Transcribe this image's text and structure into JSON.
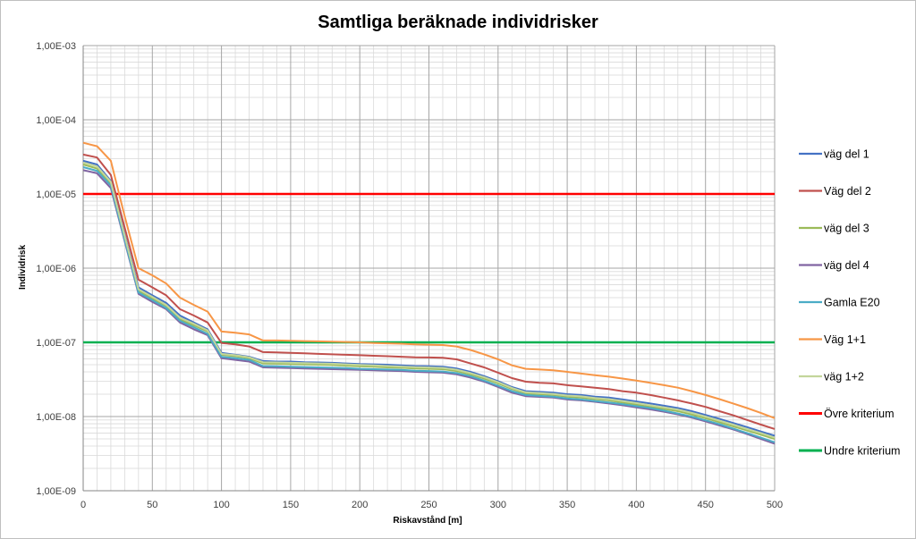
{
  "chart_data": {
    "type": "line",
    "title": "Samtliga beräknade individrisker",
    "xlabel": "Riskavstånd [m]",
    "ylabel": "Individrisk",
    "xlim": [
      0,
      500
    ],
    "ylim": [
      1e-09,
      0.001
    ],
    "yscale": "log",
    "x_ticks": [
      0,
      50,
      100,
      150,
      200,
      250,
      300,
      350,
      400,
      450,
      500
    ],
    "y_ticks": [
      1e-09,
      1e-08,
      1e-07,
      1e-06,
      1e-05,
      0.0001,
      0.001
    ],
    "y_tick_labels": [
      "1,00E-09",
      "1,00E-08",
      "1,00E-07",
      "1,00E-06",
      "1,00E-05",
      "1,00E-04",
      "1,00E-03"
    ],
    "grid": true,
    "legend_position": "right",
    "x": [
      0,
      10,
      20,
      30,
      40,
      50,
      60,
      70,
      80,
      90,
      100,
      110,
      120,
      130,
      140,
      150,
      160,
      170,
      180,
      190,
      200,
      210,
      220,
      230,
      240,
      250,
      260,
      270,
      280,
      290,
      300,
      310,
      320,
      330,
      340,
      350,
      360,
      370,
      380,
      390,
      400,
      410,
      420,
      430,
      440,
      450,
      460,
      470,
      480,
      490,
      500
    ],
    "series": [
      {
        "name": "väg del 1",
        "color": "#4472c4",
        "values": [
          2.8e-05,
          2.5e-05,
          1.5e-05,
          2.8e-06,
          5.5e-07,
          4.3e-07,
          3.4e-07,
          2.3e-07,
          1.85e-07,
          1.5e-07,
          7.2e-08,
          6.8e-08,
          6.4e-08,
          5.6e-08,
          5.5e-08,
          5.5e-08,
          5.4e-08,
          5.35e-08,
          5.3e-08,
          5.2e-08,
          5.1e-08,
          5.05e-08,
          5e-08,
          4.9e-08,
          4.8e-08,
          4.75e-08,
          4.7e-08,
          4.45e-08,
          4e-08,
          3.5e-08,
          3e-08,
          2.5e-08,
          2.2e-08,
          2.15e-08,
          2.1e-08,
          2e-08,
          1.95e-08,
          1.85e-08,
          1.8e-08,
          1.7e-08,
          1.6e-08,
          1.5e-08,
          1.4e-08,
          1.3e-08,
          1.18e-08,
          1.05e-08,
          9.3e-09,
          8.2e-09,
          7.2e-09,
          6.3e-09,
          5.5e-09
        ]
      },
      {
        "name": "Väg del 2",
        "color": "#c0504d",
        "values": [
          3.4e-05,
          3.1e-05,
          1.8e-05,
          3.5e-06,
          7e-07,
          5.5e-07,
          4.3e-07,
          2.8e-07,
          2.3e-07,
          1.85e-07,
          9.8e-08,
          9.4e-08,
          8.8e-08,
          7.4e-08,
          7.3e-08,
          7.2e-08,
          7.1e-08,
          7e-08,
          6.9e-08,
          6.8e-08,
          6.7e-08,
          6.6e-08,
          6.5e-08,
          6.4e-08,
          6.3e-08,
          6.25e-08,
          6.2e-08,
          5.9e-08,
          5.2e-08,
          4.6e-08,
          3.9e-08,
          3.3e-08,
          2.95e-08,
          2.85e-08,
          2.8e-08,
          2.65e-08,
          2.55e-08,
          2.45e-08,
          2.35e-08,
          2.2e-08,
          2.1e-08,
          1.95e-08,
          1.8e-08,
          1.65e-08,
          1.5e-08,
          1.35e-08,
          1.18e-08,
          1.04e-08,
          9e-09,
          7.8e-09,
          6.8e-09
        ]
      },
      {
        "name": "väg del 3",
        "color": "#9bbb59",
        "values": [
          2.5e-05,
          2.2e-05,
          1.4e-05,
          2.6e-06,
          5e-07,
          3.9e-07,
          3.1e-07,
          2.05e-07,
          1.7e-07,
          1.4e-07,
          6.8e-08,
          6.5e-08,
          6.1e-08,
          5.2e-08,
          5.15e-08,
          5.1e-08,
          5.05e-08,
          5e-08,
          4.95e-08,
          4.85e-08,
          4.75e-08,
          4.7e-08,
          4.6e-08,
          4.55e-08,
          4.45e-08,
          4.4e-08,
          4.35e-08,
          4.1e-08,
          3.7e-08,
          3.25e-08,
          2.8e-08,
          2.35e-08,
          2.05e-08,
          2e-08,
          1.95e-08,
          1.85e-08,
          1.8e-08,
          1.72e-08,
          1.65e-08,
          1.55e-08,
          1.45e-08,
          1.35e-08,
          1.27e-08,
          1.18e-08,
          1.07e-08,
          9.5e-09,
          8.4e-09,
          7.4e-09,
          6.5e-09,
          5.7e-09,
          5e-09
        ]
      },
      {
        "name": "väg del 4",
        "color": "#8064a2",
        "values": [
          2.1e-05,
          1.9e-05,
          1.2e-05,
          2.3e-06,
          4.5e-07,
          3.5e-07,
          2.8e-07,
          1.85e-07,
          1.5e-07,
          1.25e-07,
          6.1e-08,
          5.8e-08,
          5.5e-08,
          4.6e-08,
          4.55e-08,
          4.5e-08,
          4.45e-08,
          4.4e-08,
          4.35e-08,
          4.3e-08,
          4.25e-08,
          4.2e-08,
          4.15e-08,
          4.1e-08,
          4e-08,
          3.95e-08,
          3.9e-08,
          3.7e-08,
          3.35e-08,
          2.95e-08,
          2.5e-08,
          2.1e-08,
          1.88e-08,
          1.84e-08,
          1.8e-08,
          1.7e-08,
          1.65e-08,
          1.58e-08,
          1.5e-08,
          1.42e-08,
          1.33e-08,
          1.25e-08,
          1.16e-08,
          1.07e-08,
          9.7e-09,
          8.6e-09,
          7.6e-09,
          6.7e-09,
          5.8e-09,
          5e-09,
          4.3e-09
        ]
      },
      {
        "name": "Gamla E20",
        "color": "#4bacc6",
        "values": [
          2.3e-05,
          2.05e-05,
          1.3e-05,
          2.4e-06,
          4.7e-07,
          3.7e-07,
          2.9e-07,
          1.95e-07,
          1.6e-07,
          1.3e-07,
          6.4e-08,
          6.1e-08,
          5.8e-08,
          4.8e-08,
          4.75e-08,
          4.7e-08,
          4.65e-08,
          4.6e-08,
          4.55e-08,
          4.5e-08,
          4.4e-08,
          4.35e-08,
          4.3e-08,
          4.25e-08,
          4.15e-08,
          4.1e-08,
          4.05e-08,
          3.85e-08,
          3.5e-08,
          3.05e-08,
          2.6e-08,
          2.2e-08,
          1.95e-08,
          1.9e-08,
          1.85e-08,
          1.75e-08,
          1.7e-08,
          1.62e-08,
          1.55e-08,
          1.47e-08,
          1.38e-08,
          1.3e-08,
          1.2e-08,
          1.1e-08,
          1e-08,
          8.9e-09,
          7.9e-09,
          6.9e-09,
          6e-09,
          5.2e-09,
          4.5e-09
        ]
      },
      {
        "name": "Väg 1+1",
        "color": "#f79646",
        "values": [
          4.9e-05,
          4.4e-05,
          2.8e-05,
          5e-06,
          1e-06,
          8e-07,
          6.2e-07,
          4e-07,
          3.2e-07,
          2.6e-07,
          1.4e-07,
          1.35e-07,
          1.28e-07,
          1.06e-07,
          1.06e-07,
          1.05e-07,
          1.04e-07,
          1.03e-07,
          1.02e-07,
          1.01e-07,
          1e-07,
          9.8e-08,
          9.7e-08,
          9.6e-08,
          9.4e-08,
          9.3e-08,
          9.2e-08,
          8.8e-08,
          7.9e-08,
          6.9e-08,
          5.9e-08,
          4.9e-08,
          4.4e-08,
          4.3e-08,
          4.2e-08,
          4e-08,
          3.8e-08,
          3.6e-08,
          3.45e-08,
          3.25e-08,
          3.05e-08,
          2.85e-08,
          2.65e-08,
          2.45e-08,
          2.2e-08,
          1.95e-08,
          1.72e-08,
          1.5e-08,
          1.3e-08,
          1.12e-08,
          9.5e-09
        ]
      },
      {
        "name": "väg 1+2",
        "color": "#c3d69b",
        "values": [
          2.65e-05,
          2.35e-05,
          1.45e-05,
          2.7e-06,
          5.2e-07,
          4.1e-07,
          3.2e-07,
          2.15e-07,
          1.78e-07,
          1.45e-07,
          7e-08,
          6.7e-08,
          6.3e-08,
          5.4e-08,
          5.35e-08,
          5.3e-08,
          5.25e-08,
          5.2e-08,
          5.15e-08,
          5.05e-08,
          4.95e-08,
          4.9e-08,
          4.8e-08,
          4.72e-08,
          4.62e-08,
          4.58e-08,
          4.52e-08,
          4.28e-08,
          3.85e-08,
          3.38e-08,
          2.9e-08,
          2.42e-08,
          2.12e-08,
          2.07e-08,
          2.02e-08,
          1.92e-08,
          1.87e-08,
          1.78e-08,
          1.72e-08,
          1.62e-08,
          1.52e-08,
          1.42e-08,
          1.33e-08,
          1.24e-08,
          1.12e-08,
          1e-08,
          8.8e-09,
          7.8e-09,
          6.8e-09,
          6e-09,
          5.2e-09
        ]
      },
      {
        "name": "Övre kriterium",
        "color": "#ff0000",
        "constant": 1e-05
      },
      {
        "name": "Undre kriterium",
        "color": "#00b050",
        "constant": 1e-07
      }
    ]
  }
}
